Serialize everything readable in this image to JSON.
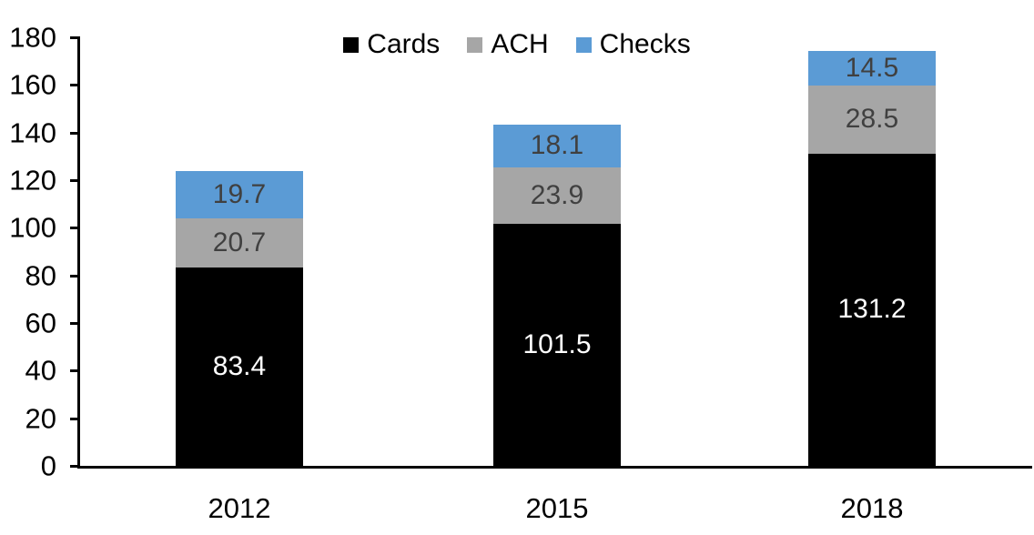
{
  "chart_data": {
    "type": "bar",
    "stacked": true,
    "title": "",
    "xlabel": "",
    "ylabel": "",
    "categories": [
      "2012",
      "2015",
      "2018"
    ],
    "series": [
      {
        "name": "Cards",
        "color": "#000000",
        "label_color": "#ffffff",
        "values": [
          83.4,
          101.5,
          131.2
        ]
      },
      {
        "name": "ACH",
        "color": "#a6a6a6",
        "label_color": "#404040",
        "values": [
          20.7,
          23.9,
          28.5
        ]
      },
      {
        "name": "Checks",
        "color": "#5b9bd5",
        "label_color": "#404040",
        "values": [
          19.7,
          18.1,
          14.5
        ]
      }
    ],
    "ylim": [
      0,
      180
    ],
    "yticks": [
      0,
      20,
      40,
      60,
      80,
      100,
      120,
      140,
      160,
      180
    ],
    "grid": false,
    "legend_position": "top",
    "data_labels": true,
    "axis_color": "#000000"
  }
}
